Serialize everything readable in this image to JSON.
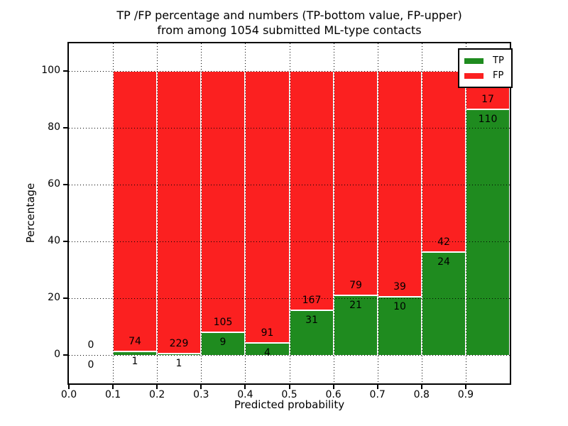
{
  "title": {
    "line1": "TP /FP percentage and numbers (TP-bottom value, FP-upper)",
    "line2": "from among 1054 submitted ML-type contacts"
  },
  "axes": {
    "xlabel": "Predicted probability",
    "ylabel": "Percentage",
    "x_ticks": [
      "0.0",
      "0.1",
      "0.2",
      "0.3",
      "0.4",
      "0.5",
      "0.6",
      "0.7",
      "0.8",
      "0.9"
    ],
    "y_ticks": [
      "0",
      "20",
      "40",
      "60",
      "80",
      "100"
    ]
  },
  "legend": {
    "items": [
      {
        "label": "TP",
        "color": "#1f8b1f"
      },
      {
        "label": "FP",
        "color": "#fb2020"
      }
    ]
  },
  "chart_data": {
    "type": "bar",
    "stacked": true,
    "normalized_to_percent": 100,
    "title": "TP /FP percentage and numbers (TP-bottom value, FP-upper) from among 1054 submitted ML-type contacts",
    "xlabel": "Predicted probability",
    "ylabel": "Percentage",
    "bin_edges": [
      0.0,
      0.1,
      0.2,
      0.3,
      0.4,
      0.5,
      0.6,
      0.7,
      0.8,
      0.9,
      1.0
    ],
    "categories": [
      "0.0-0.1",
      "0.1-0.2",
      "0.2-0.3",
      "0.3-0.4",
      "0.4-0.5",
      "0.5-0.6",
      "0.6-0.7",
      "0.7-0.8",
      "0.8-0.9",
      "0.9-1.0"
    ],
    "series": [
      {
        "name": "TP",
        "color": "#1f8b1f",
        "counts": [
          0,
          1,
          1,
          9,
          4,
          31,
          21,
          10,
          24,
          110
        ]
      },
      {
        "name": "FP",
        "color": "#fb2020",
        "counts": [
          0,
          74,
          229,
          105,
          91,
          167,
          79,
          39,
          42,
          17
        ]
      }
    ],
    "bar_value_labels": {
      "tp_bottom": [
        "0",
        "1",
        "1",
        "9",
        "4",
        "31",
        "21",
        "10",
        "24",
        "110"
      ],
      "fp_upper": [
        "0",
        "74",
        "229",
        "105",
        "91",
        "167",
        "79",
        "39",
        "42",
        "17"
      ]
    },
    "total_contacts": 1054,
    "xlim": [
      0.0,
      1.0
    ],
    "ylim": [
      -10,
      110
    ],
    "y_tick_values": [
      0,
      20,
      40,
      60,
      80,
      100
    ],
    "x_tick_values": [
      0.0,
      0.1,
      0.2,
      0.3,
      0.4,
      0.5,
      0.6,
      0.7,
      0.8,
      0.9
    ],
    "grid": true,
    "grid_style": "dotted",
    "legend_position": "upper right"
  }
}
